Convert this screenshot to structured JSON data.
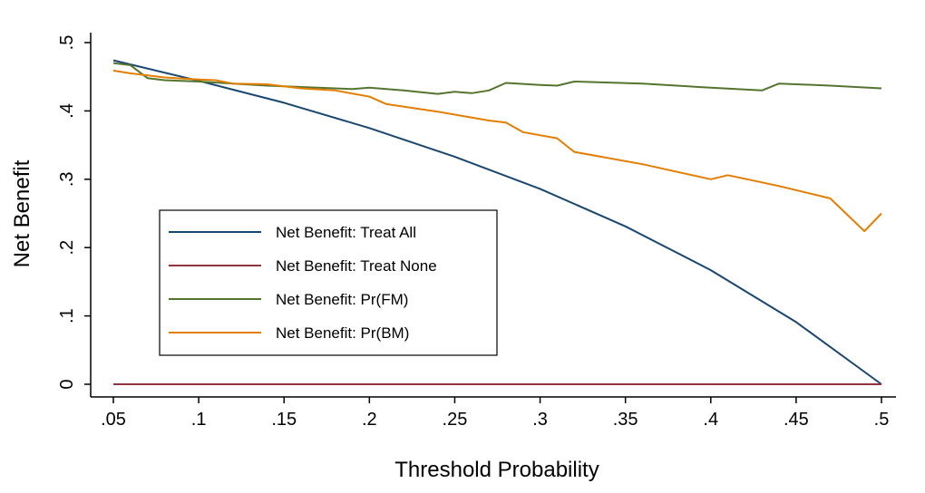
{
  "chart_data": {
    "type": "line",
    "title": "",
    "xlabel": "Threshold Probability",
    "ylabel": "Net Benefit",
    "xlim": [
      0.05,
      0.5
    ],
    "ylim": [
      0,
      0.5
    ],
    "xticks": [
      {
        "value": 0.05,
        "label": ".05"
      },
      {
        "value": 0.1,
        "label": ".1"
      },
      {
        "value": 0.15,
        "label": ".15"
      },
      {
        "value": 0.2,
        "label": ".2"
      },
      {
        "value": 0.25,
        "label": ".25"
      },
      {
        "value": 0.3,
        "label": ".3"
      },
      {
        "value": 0.35,
        "label": ".35"
      },
      {
        "value": 0.4,
        "label": ".4"
      },
      {
        "value": 0.45,
        "label": ".45"
      },
      {
        "value": 0.5,
        "label": ".5"
      }
    ],
    "yticks": [
      {
        "value": 0,
        "label": "0"
      },
      {
        "value": 0.1,
        "label": ".1"
      },
      {
        "value": 0.2,
        "label": ".2"
      },
      {
        "value": 0.3,
        "label": ".3"
      },
      {
        "value": 0.4,
        "label": ".4"
      },
      {
        "value": 0.5,
        "label": ".5"
      }
    ],
    "grid": false,
    "legend_position": "inside-left",
    "series": [
      {
        "name": "Net Benefit: Treat All",
        "color": "#1a476f",
        "x": [
          0.05,
          0.1,
          0.15,
          0.2,
          0.25,
          0.3,
          0.35,
          0.4,
          0.45,
          0.5
        ],
        "y": [
          0.474,
          0.444,
          0.412,
          0.375,
          0.333,
          0.286,
          0.231,
          0.167,
          0.091,
          0.0
        ]
      },
      {
        "name": "Net Benefit: Treat None",
        "color": "#90353b",
        "x": [
          0.05,
          0.5
        ],
        "y": [
          0,
          0
        ]
      },
      {
        "name": "Net Benefit: Pr(FM)",
        "color": "#55752f",
        "x": [
          0.05,
          0.06,
          0.07,
          0.08,
          0.1,
          0.12,
          0.14,
          0.16,
          0.18,
          0.19,
          0.2,
          0.22,
          0.24,
          0.25,
          0.26,
          0.27,
          0.28,
          0.3,
          0.31,
          0.32,
          0.36,
          0.4,
          0.43,
          0.44,
          0.47,
          0.5
        ],
        "y": [
          0.47,
          0.467,
          0.448,
          0.445,
          0.443,
          0.44,
          0.437,
          0.435,
          0.433,
          0.432,
          0.434,
          0.43,
          0.425,
          0.428,
          0.426,
          0.43,
          0.441,
          0.438,
          0.437,
          0.443,
          0.44,
          0.434,
          0.43,
          0.44,
          0.437,
          0.433
        ]
      },
      {
        "name": "Net Benefit: Pr(BM)",
        "color": "#e37e00",
        "x": [
          0.05,
          0.06,
          0.08,
          0.1,
          0.11,
          0.12,
          0.14,
          0.16,
          0.18,
          0.2,
          0.21,
          0.24,
          0.27,
          0.28,
          0.29,
          0.31,
          0.32,
          0.36,
          0.4,
          0.41,
          0.44,
          0.47,
          0.49,
          0.5
        ],
        "y": [
          0.459,
          0.455,
          0.449,
          0.446,
          0.445,
          0.44,
          0.439,
          0.433,
          0.43,
          0.421,
          0.41,
          0.399,
          0.386,
          0.383,
          0.369,
          0.36,
          0.34,
          0.322,
          0.3,
          0.306,
          0.29,
          0.272,
          0.224,
          0.25
        ]
      }
    ]
  }
}
